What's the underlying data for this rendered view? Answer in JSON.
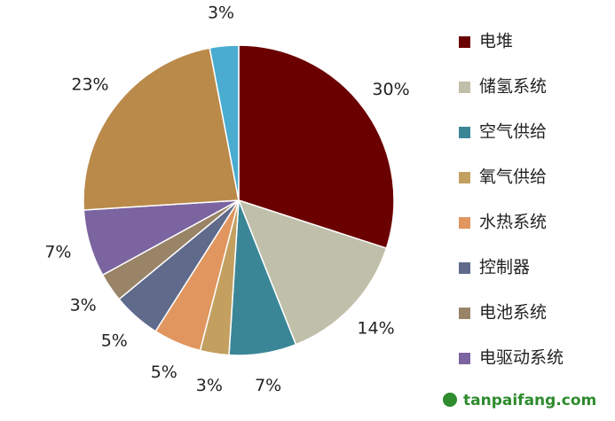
{
  "chart_data": {
    "type": "pie",
    "categories": [
      "电堆",
      "储氢系统",
      "空气供给",
      "氧气供给",
      "水热系统",
      "控制器",
      "电池系统",
      "电驱动系统",
      null,
      null
    ],
    "values": [
      30,
      14,
      7,
      3,
      5,
      5,
      3,
      7,
      23,
      3
    ],
    "value_labels": [
      "30%",
      "14%",
      "7%",
      "3%",
      "5%",
      "5%",
      "3%",
      "7%",
      "23%",
      "3%"
    ],
    "colors": [
      "#6b0000",
      "#bfbfaa",
      "#3a8696",
      "#c3a060",
      "#e0965e",
      "#606a8a",
      "#9a8468",
      "#7b64a0",
      "#ba8a4a",
      "#49acd0"
    ],
    "legend": "right"
  },
  "watermark": "tanpaifang.com"
}
